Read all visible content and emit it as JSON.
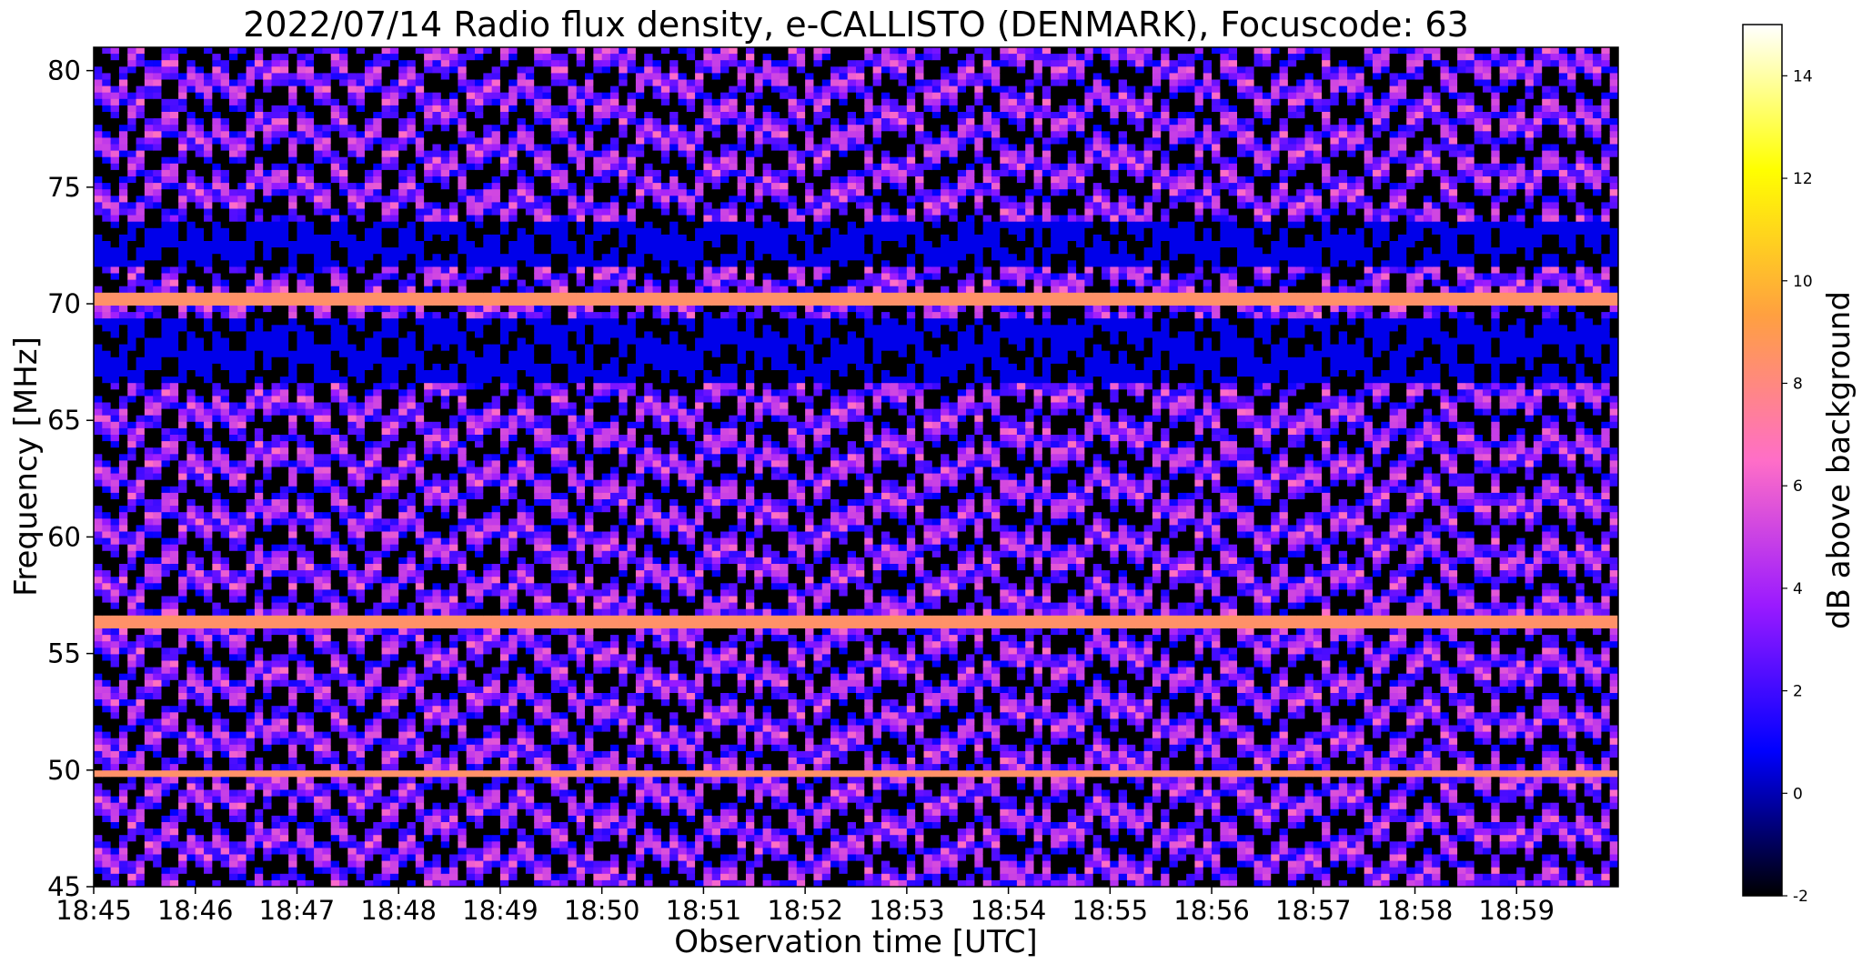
{
  "chart_data": {
    "type": "heatmap",
    "title": "2022/07/14  Radio flux density, e-CALLISTO (DENMARK), Focuscode: 63",
    "xlabel": "Observation time [UTC]",
    "ylabel": "Frequency [MHz]",
    "x_ticks": [
      "18:45",
      "18:46",
      "18:47",
      "18:48",
      "18:49",
      "18:50",
      "18:51",
      "18:52",
      "18:53",
      "18:54",
      "18:55",
      "18:56",
      "18:57",
      "18:58",
      "18:59"
    ],
    "x_range": [
      "18:45",
      "19:00"
    ],
    "y_ticks": [
      45,
      50,
      55,
      60,
      65,
      70,
      75,
      80
    ],
    "y_range": [
      45,
      81
    ],
    "colorbar": {
      "label": "dB above background",
      "range": [
        -2,
        15
      ],
      "ticks": [
        -2,
        0,
        2,
        4,
        6,
        8,
        10,
        12,
        14
      ],
      "colormap": [
        "#000000",
        "#0000ff",
        "#9a1aff",
        "#ff6ec7",
        "#ffa040",
        "#ffff00",
        "#ffffff"
      ]
    },
    "persistent_bright_bands_mhz": [
      70.2,
      56.4,
      49.9
    ]
  }
}
